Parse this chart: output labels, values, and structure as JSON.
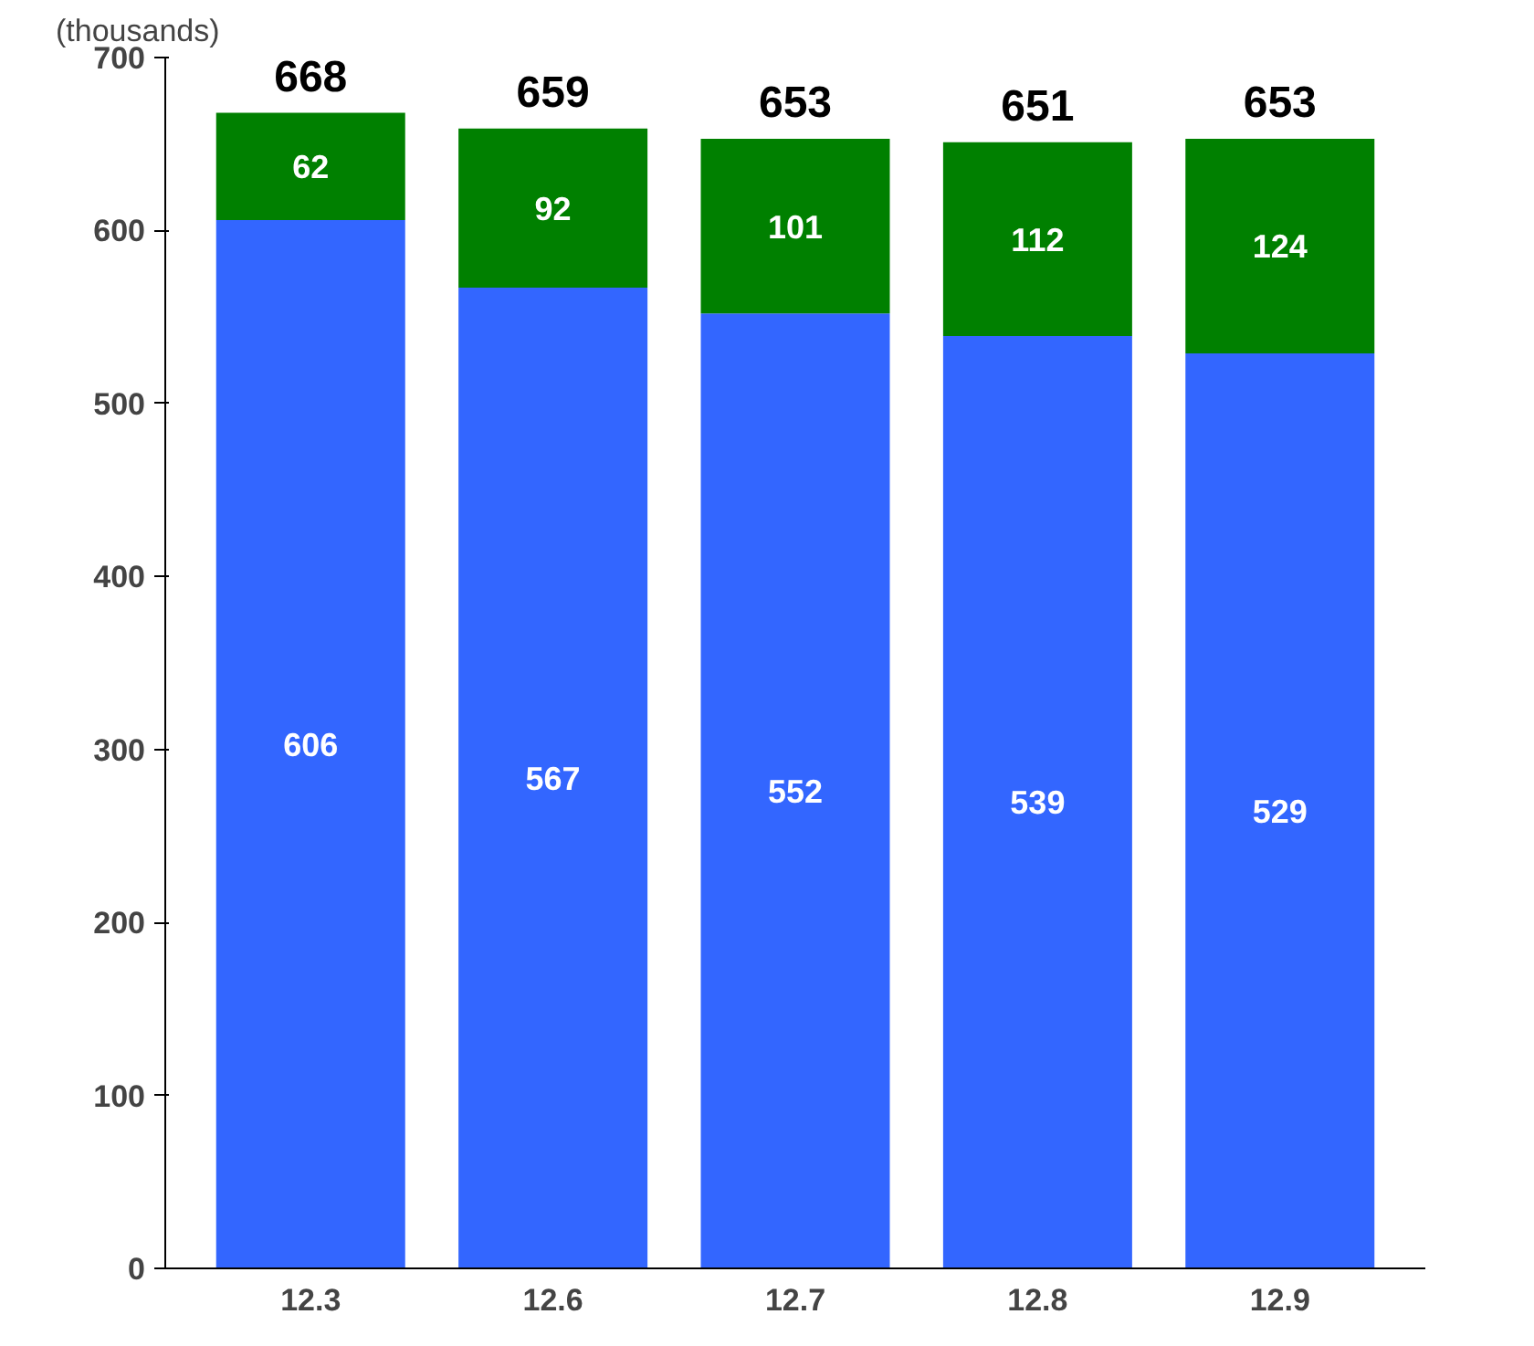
{
  "chart_data": {
    "type": "bar",
    "stacked": true,
    "ylabel": "(thousands)",
    "categories": [
      "12.3",
      "12.6",
      "12.7",
      "12.8",
      "12.9"
    ],
    "series": [
      {
        "color": "#3366ff",
        "values": [
          606,
          567,
          552,
          539,
          529
        ]
      },
      {
        "color": "#008000",
        "values": [
          62,
          92,
          101,
          112,
          124
        ]
      }
    ],
    "totals": [
      "668",
      "659",
      "653",
      "651",
      "653"
    ],
    "data_labels": true,
    "ylim": [
      0,
      700
    ],
    "yticks": [
      0,
      100,
      200,
      300,
      400,
      500,
      600,
      700
    ],
    "grid": false
  }
}
